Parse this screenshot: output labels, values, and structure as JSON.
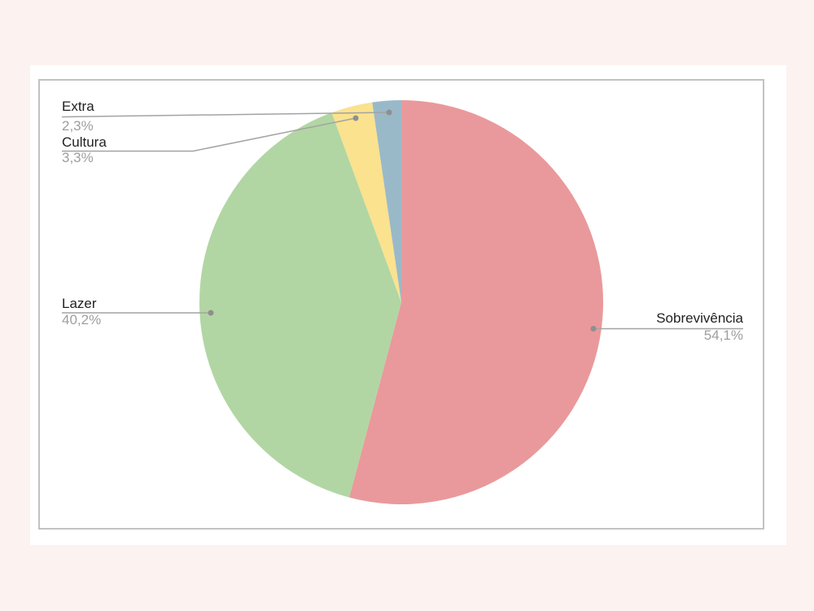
{
  "page": {
    "background_color": "#fcf2f0",
    "card_background": "#ffffff",
    "frame_border_color": "#c2c2c2"
  },
  "chart_data": {
    "type": "pie",
    "title": "",
    "direction": "clockwise",
    "start_angle_deg": 0,
    "legend_position": "none",
    "labels_style": "outside-callout",
    "label_style": {
      "name_color": "#212121",
      "pct_color": "#9e9e9e",
      "leader_color": "#a3a3a3",
      "dot_color": "#8f8f8f"
    },
    "categories": [
      "Sobrevivência",
      "Lazer",
      "Cultura",
      "Extra"
    ],
    "values": [
      54.1,
      40.2,
      3.3,
      2.3
    ],
    "slices": [
      {
        "key": "sobrevivencia",
        "label": "Sobrevivência",
        "value": 54.1,
        "pct_label": "54,1%",
        "color": "#e9999b"
      },
      {
        "key": "lazer",
        "label": "Lazer",
        "value": 40.2,
        "pct_label": "40,2%",
        "color": "#b1d6a3"
      },
      {
        "key": "cultura",
        "label": "Cultura",
        "value": 3.3,
        "pct_label": "3,3%",
        "color": "#fae28f"
      },
      {
        "key": "extra",
        "label": "Extra",
        "value": 2.3,
        "pct_label": "2,3%",
        "color": "#9ab9c8"
      }
    ]
  }
}
